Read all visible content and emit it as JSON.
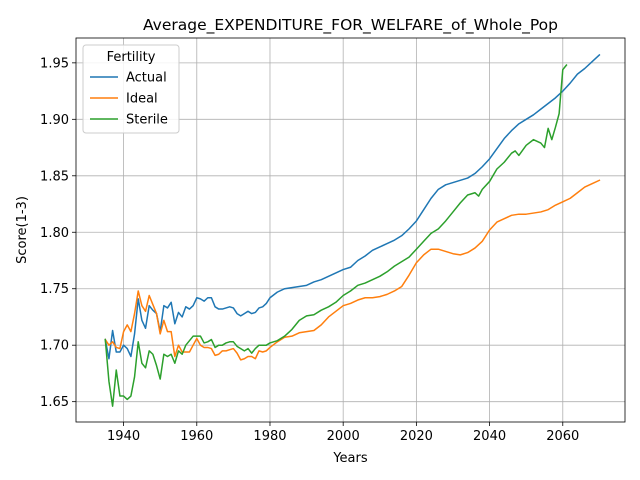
{
  "chart_data": {
    "type": "line",
    "title": "Average_EXPENDITURE_FOR_WELFARE_of_Whole_Pop",
    "xlabel": "Years",
    "ylabel": "Score(1-3)",
    "xlim": [
      1927,
      2077
    ],
    "ylim": [
      1.632,
      1.972
    ],
    "xticks": [
      1940,
      1960,
      1980,
      2000,
      2020,
      2040,
      2060
    ],
    "xtick_labels": [
      "1940",
      "1960",
      "1980",
      "2000",
      "2020",
      "2040",
      "2060"
    ],
    "yticks": [
      1.65,
      1.7,
      1.75,
      1.8,
      1.85,
      1.9,
      1.95
    ],
    "ytick_labels": [
      "1.65",
      "1.70",
      "1.75",
      "1.80",
      "1.85",
      "1.90",
      "1.95"
    ],
    "grid": true,
    "legend": {
      "title": "Fertility",
      "placement": "upper-left"
    },
    "series": [
      {
        "name": "Actual",
        "color": "#1f77b4",
        "points": [
          [
            1935,
            1.705
          ],
          [
            1936,
            1.688
          ],
          [
            1937,
            1.713
          ],
          [
            1938,
            1.694
          ],
          [
            1939,
            1.694
          ],
          [
            1940,
            1.7
          ],
          [
            1941,
            1.697
          ],
          [
            1942,
            1.69
          ],
          [
            1943,
            1.71
          ],
          [
            1944,
            1.741
          ],
          [
            1945,
            1.722
          ],
          [
            1946,
            1.715
          ],
          [
            1947,
            1.735
          ],
          [
            1948,
            1.731
          ],
          [
            1949,
            1.728
          ],
          [
            1950,
            1.712
          ],
          [
            1951,
            1.735
          ],
          [
            1952,
            1.733
          ],
          [
            1953,
            1.738
          ],
          [
            1954,
            1.719
          ],
          [
            1955,
            1.729
          ],
          [
            1956,
            1.725
          ],
          [
            1957,
            1.734
          ],
          [
            1958,
            1.732
          ],
          [
            1959,
            1.735
          ],
          [
            1960,
            1.742
          ],
          [
            1961,
            1.741
          ],
          [
            1962,
            1.739
          ],
          [
            1963,
            1.742
          ],
          [
            1964,
            1.742
          ],
          [
            1965,
            1.734
          ],
          [
            1966,
            1.732
          ],
          [
            1967,
            1.732
          ],
          [
            1968,
            1.733
          ],
          [
            1969,
            1.734
          ],
          [
            1970,
            1.733
          ],
          [
            1971,
            1.728
          ],
          [
            1972,
            1.726
          ],
          [
            1973,
            1.728
          ],
          [
            1974,
            1.73
          ],
          [
            1975,
            1.728
          ],
          [
            1976,
            1.729
          ],
          [
            1977,
            1.733
          ],
          [
            1978,
            1.734
          ],
          [
            1979,
            1.737
          ],
          [
            1980,
            1.742
          ],
          [
            1982,
            1.747
          ],
          [
            1984,
            1.75
          ],
          [
            1986,
            1.751
          ],
          [
            1988,
            1.752
          ],
          [
            1990,
            1.753
          ],
          [
            1992,
            1.756
          ],
          [
            1994,
            1.758
          ],
          [
            1996,
            1.761
          ],
          [
            1998,
            1.764
          ],
          [
            2000,
            1.767
          ],
          [
            2002,
            1.769
          ],
          [
            2004,
            1.775
          ],
          [
            2006,
            1.779
          ],
          [
            2008,
            1.784
          ],
          [
            2010,
            1.787
          ],
          [
            2012,
            1.79
          ],
          [
            2014,
            1.793
          ],
          [
            2016,
            1.797
          ],
          [
            2018,
            1.803
          ],
          [
            2020,
            1.81
          ],
          [
            2022,
            1.82
          ],
          [
            2024,
            1.83
          ],
          [
            2026,
            1.838
          ],
          [
            2028,
            1.842
          ],
          [
            2030,
            1.844
          ],
          [
            2032,
            1.846
          ],
          [
            2034,
            1.848
          ],
          [
            2036,
            1.852
          ],
          [
            2038,
            1.858
          ],
          [
            2040,
            1.865
          ],
          [
            2042,
            1.874
          ],
          [
            2044,
            1.883
          ],
          [
            2046,
            1.89
          ],
          [
            2048,
            1.896
          ],
          [
            2050,
            1.9
          ],
          [
            2052,
            1.904
          ],
          [
            2054,
            1.909
          ],
          [
            2056,
            1.914
          ],
          [
            2058,
            1.919
          ],
          [
            2060,
            1.925
          ],
          [
            2062,
            1.932
          ],
          [
            2064,
            1.94
          ],
          [
            2066,
            1.945
          ],
          [
            2068,
            1.951
          ],
          [
            2070,
            1.957
          ]
        ]
      },
      {
        "name": "Ideal",
        "color": "#ff7f0e",
        "points": [
          [
            1935,
            1.705
          ],
          [
            1936,
            1.7
          ],
          [
            1937,
            1.703
          ],
          [
            1938,
            1.698
          ],
          [
            1939,
            1.697
          ],
          [
            1940,
            1.712
          ],
          [
            1941,
            1.718
          ],
          [
            1942,
            1.712
          ],
          [
            1943,
            1.728
          ],
          [
            1944,
            1.748
          ],
          [
            1945,
            1.735
          ],
          [
            1946,
            1.73
          ],
          [
            1947,
            1.744
          ],
          [
            1948,
            1.736
          ],
          [
            1949,
            1.728
          ],
          [
            1950,
            1.71
          ],
          [
            1951,
            1.722
          ],
          [
            1952,
            1.712
          ],
          [
            1953,
            1.712
          ],
          [
            1954,
            1.69
          ],
          [
            1955,
            1.7
          ],
          [
            1956,
            1.694
          ],
          [
            1957,
            1.694
          ],
          [
            1958,
            1.694
          ],
          [
            1959,
            1.7
          ],
          [
            1960,
            1.706
          ],
          [
            1961,
            1.7
          ],
          [
            1962,
            1.698
          ],
          [
            1963,
            1.698
          ],
          [
            1964,
            1.697
          ],
          [
            1965,
            1.691
          ],
          [
            1966,
            1.692
          ],
          [
            1967,
            1.695
          ],
          [
            1968,
            1.695
          ],
          [
            1969,
            1.696
          ],
          [
            1970,
            1.697
          ],
          [
            1971,
            1.693
          ],
          [
            1972,
            1.687
          ],
          [
            1973,
            1.688
          ],
          [
            1974,
            1.69
          ],
          [
            1975,
            1.69
          ],
          [
            1976,
            1.688
          ],
          [
            1977,
            1.695
          ],
          [
            1978,
            1.694
          ],
          [
            1979,
            1.695
          ],
          [
            1980,
            1.698
          ],
          [
            1982,
            1.703
          ],
          [
            1984,
            1.707
          ],
          [
            1986,
            1.708
          ],
          [
            1988,
            1.711
          ],
          [
            1990,
            1.712
          ],
          [
            1992,
            1.713
          ],
          [
            1994,
            1.718
          ],
          [
            1996,
            1.725
          ],
          [
            1998,
            1.73
          ],
          [
            2000,
            1.735
          ],
          [
            2002,
            1.737
          ],
          [
            2004,
            1.74
          ],
          [
            2006,
            1.742
          ],
          [
            2008,
            1.742
          ],
          [
            2010,
            1.743
          ],
          [
            2012,
            1.745
          ],
          [
            2014,
            1.748
          ],
          [
            2016,
            1.752
          ],
          [
            2018,
            1.762
          ],
          [
            2020,
            1.773
          ],
          [
            2022,
            1.78
          ],
          [
            2024,
            1.785
          ],
          [
            2026,
            1.785
          ],
          [
            2028,
            1.783
          ],
          [
            2030,
            1.781
          ],
          [
            2032,
            1.78
          ],
          [
            2034,
            1.782
          ],
          [
            2036,
            1.786
          ],
          [
            2038,
            1.792
          ],
          [
            2040,
            1.802
          ],
          [
            2042,
            1.809
          ],
          [
            2044,
            1.812
          ],
          [
            2046,
            1.815
          ],
          [
            2048,
            1.816
          ],
          [
            2050,
            1.816
          ],
          [
            2052,
            1.817
          ],
          [
            2054,
            1.818
          ],
          [
            2056,
            1.82
          ],
          [
            2058,
            1.824
          ],
          [
            2060,
            1.827
          ],
          [
            2062,
            1.83
          ],
          [
            2064,
            1.835
          ],
          [
            2066,
            1.84
          ],
          [
            2068,
            1.843
          ],
          [
            2070,
            1.846
          ]
        ]
      },
      {
        "name": "Sterile",
        "color": "#2ca02c",
        "points": [
          [
            1935,
            1.705
          ],
          [
            1936,
            1.668
          ],
          [
            1937,
            1.646
          ],
          [
            1938,
            1.678
          ],
          [
            1939,
            1.655
          ],
          [
            1940,
            1.655
          ],
          [
            1941,
            1.652
          ],
          [
            1942,
            1.655
          ],
          [
            1943,
            1.672
          ],
          [
            1944,
            1.703
          ],
          [
            1945,
            1.684
          ],
          [
            1946,
            1.68
          ],
          [
            1947,
            1.695
          ],
          [
            1948,
            1.692
          ],
          [
            1949,
            1.682
          ],
          [
            1950,
            1.67
          ],
          [
            1951,
            1.692
          ],
          [
            1952,
            1.69
          ],
          [
            1953,
            1.692
          ],
          [
            1954,
            1.684
          ],
          [
            1955,
            1.695
          ],
          [
            1956,
            1.692
          ],
          [
            1957,
            1.7
          ],
          [
            1958,
            1.704
          ],
          [
            1959,
            1.708
          ],
          [
            1960,
            1.708
          ],
          [
            1961,
            1.708
          ],
          [
            1962,
            1.702
          ],
          [
            1963,
            1.703
          ],
          [
            1964,
            1.705
          ],
          [
            1965,
            1.698
          ],
          [
            1966,
            1.7
          ],
          [
            1967,
            1.7
          ],
          [
            1968,
            1.702
          ],
          [
            1969,
            1.703
          ],
          [
            1970,
            1.703
          ],
          [
            1971,
            1.699
          ],
          [
            1972,
            1.697
          ],
          [
            1973,
            1.695
          ],
          [
            1974,
            1.697
          ],
          [
            1975,
            1.693
          ],
          [
            1976,
            1.697
          ],
          [
            1977,
            1.7
          ],
          [
            1978,
            1.7
          ],
          [
            1979,
            1.7
          ],
          [
            1980,
            1.702
          ],
          [
            1982,
            1.704
          ],
          [
            1984,
            1.708
          ],
          [
            1986,
            1.714
          ],
          [
            1988,
            1.722
          ],
          [
            1990,
            1.726
          ],
          [
            1992,
            1.727
          ],
          [
            1994,
            1.731
          ],
          [
            1996,
            1.734
          ],
          [
            1998,
            1.738
          ],
          [
            2000,
            1.744
          ],
          [
            2002,
            1.748
          ],
          [
            2004,
            1.753
          ],
          [
            2006,
            1.755
          ],
          [
            2008,
            1.758
          ],
          [
            2010,
            1.761
          ],
          [
            2012,
            1.765
          ],
          [
            2014,
            1.77
          ],
          [
            2016,
            1.774
          ],
          [
            2018,
            1.778
          ],
          [
            2020,
            1.785
          ],
          [
            2022,
            1.792
          ],
          [
            2024,
            1.799
          ],
          [
            2026,
            1.803
          ],
          [
            2028,
            1.81
          ],
          [
            2030,
            1.818
          ],
          [
            2032,
            1.826
          ],
          [
            2034,
            1.833
          ],
          [
            2036,
            1.835
          ],
          [
            2037,
            1.832
          ],
          [
            2038,
            1.838
          ],
          [
            2040,
            1.845
          ],
          [
            2042,
            1.856
          ],
          [
            2044,
            1.862
          ],
          [
            2046,
            1.87
          ],
          [
            2047,
            1.872
          ],
          [
            2048,
            1.868
          ],
          [
            2050,
            1.877
          ],
          [
            2052,
            1.882
          ],
          [
            2054,
            1.879
          ],
          [
            2055,
            1.875
          ],
          [
            2056,
            1.892
          ],
          [
            2057,
            1.882
          ],
          [
            2058,
            1.893
          ],
          [
            2059,
            1.905
          ],
          [
            2060,
            1.944
          ],
          [
            2061,
            1.948
          ]
        ]
      }
    ]
  }
}
